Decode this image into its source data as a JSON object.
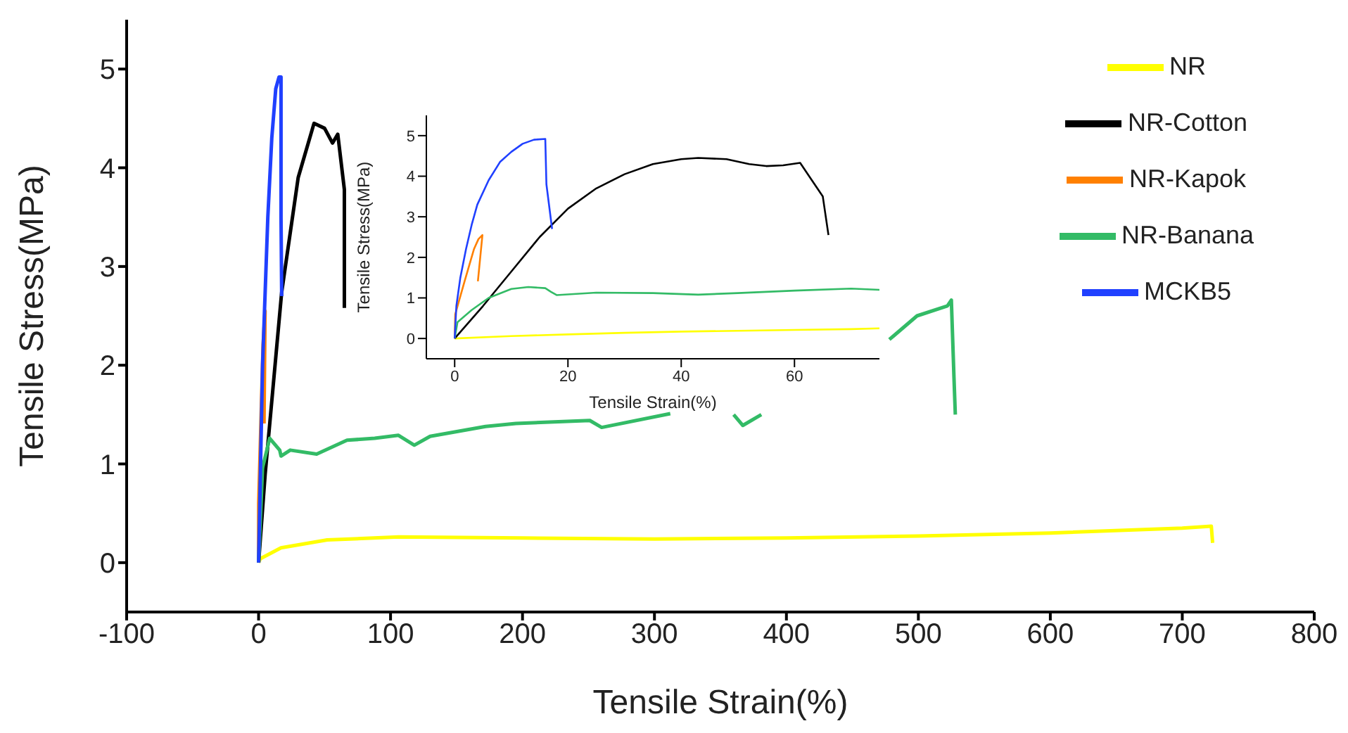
{
  "chart_data": [
    {
      "type": "line",
      "xlabel": "Tensile Strain(%)",
      "ylabel": "Tensile Stress(MPa)",
      "xlim": [
        -100,
        800
      ],
      "ylim": [
        -0.5,
        5.5
      ],
      "xticks": [
        -100,
        0,
        100,
        200,
        300,
        400,
        500,
        600,
        700,
        800
      ],
      "yticks": [
        0,
        1,
        2,
        3,
        4,
        5
      ],
      "legend": "top right",
      "series": [
        {
          "name": "NR",
          "color": "#ffff00",
          "x": [
            0,
            1.3,
            17,
            52,
            106,
            200,
            300,
            400,
            500,
            600,
            700,
            722,
            723
          ],
          "values": [
            0,
            0.04,
            0.15,
            0.23,
            0.26,
            0.25,
            0.24,
            0.25,
            0.27,
            0.3,
            0.35,
            0.37,
            0.2
          ]
        },
        {
          "name": "NR-Cotton",
          "color": "#000000",
          "x": [
            0,
            5,
            17.5,
            30,
            42,
            50,
            56,
            60,
            65,
            65
          ],
          "values": [
            0,
            0.9,
            2.74,
            3.9,
            4.45,
            4.4,
            4.25,
            4.34,
            3.78,
            2.58
          ]
        },
        {
          "name": "NR-Kapok",
          "color": "#ff8000",
          "x": [
            0,
            0.1,
            1.75,
            3.4,
            4.9,
            4.1
          ],
          "values": [
            0,
            0.6,
            1.41,
            2.2,
            2.55,
            1.41
          ]
        },
        {
          "name": "NR-Banana",
          "color": "#33bb66",
          "x": [
            0,
            3,
            8.4,
            16,
            17,
            24,
            44,
            67,
            88,
            106,
            118,
            130,
            172,
            195,
            251,
            260,
            312,
            330,
            360,
            367,
            381,
            400,
            478,
            499,
            522,
            525,
            527,
            528
          ],
          "values": [
            0,
            0.96,
            1.26,
            1.14,
            1.08,
            1.14,
            1.1,
            1.24,
            1.26,
            1.29,
            1.19,
            1.28,
            1.38,
            1.41,
            1.44,
            1.37,
            1.51,
            null,
            1.5,
            1.39,
            1.5,
            null,
            2.26,
            2.5,
            2.6,
            2.66,
            1.87,
            1.5
          ]
        },
        {
          "name": "MCKB5",
          "color": "#2040ff",
          "x": [
            0,
            3,
            7,
            10,
            13,
            15.5,
            17,
            17,
            17.5
          ],
          "values": [
            0,
            2,
            3.5,
            4.3,
            4.8,
            4.92,
            4.92,
            3.5,
            2.7
          ]
        }
      ]
    },
    {
      "type": "line",
      "xlabel": "Tensile Strain(%)",
      "ylabel": "Tensile Stress(MPa)",
      "xlim": [
        -5,
        75
      ],
      "ylim": [
        -0.5,
        5.5
      ],
      "xticks": [
        0,
        20,
        40,
        60
      ],
      "yticks": [
        0,
        1,
        2,
        3,
        4,
        5
      ],
      "series": [
        {
          "color": "#ffff00",
          "x": [
            0,
            10,
            20,
            30,
            40,
            50,
            60,
            70,
            75
          ],
          "values": [
            0,
            0.06,
            0.1,
            0.14,
            0.17,
            0.19,
            0.21,
            0.23,
            0.25
          ]
        },
        {
          "color": "#000000",
          "x": [
            0,
            5,
            10,
            15,
            20,
            25,
            30,
            35,
            40,
            43,
            48,
            52,
            55,
            58,
            61,
            65,
            66
          ],
          "values": [
            0,
            0.8,
            1.65,
            2.5,
            3.2,
            3.7,
            4.05,
            4.3,
            4.42,
            4.45,
            4.42,
            4.3,
            4.25,
            4.27,
            4.33,
            3.5,
            2.55
          ]
        },
        {
          "color": "#ff8000",
          "x": [
            0,
            0.1,
            1.75,
            3.4,
            4.2,
            4.9,
            4.1
          ],
          "values": [
            0,
            0.6,
            1.41,
            2.2,
            2.45,
            2.55,
            1.41
          ]
        },
        {
          "color": "#33bb66",
          "x": [
            0,
            0.5,
            3,
            6,
            10,
            13,
            16,
            17,
            18,
            25,
            35,
            43,
            50,
            60,
            70,
            75
          ],
          "values": [
            0,
            0.4,
            0.7,
            1.0,
            1.22,
            1.27,
            1.24,
            1.15,
            1.07,
            1.13,
            1.12,
            1.08,
            1.12,
            1.18,
            1.23,
            1.2
          ]
        },
        {
          "color": "#2040ff",
          "x": [
            0,
            0.3,
            1,
            2,
            3,
            4,
            6,
            8,
            10,
            12,
            14,
            16,
            16.2,
            17.2
          ],
          "values": [
            0,
            0.8,
            1.5,
            2.2,
            2.8,
            3.3,
            3.9,
            4.35,
            4.6,
            4.8,
            4.9,
            4.92,
            3.8,
            2.7
          ]
        }
      ]
    }
  ]
}
